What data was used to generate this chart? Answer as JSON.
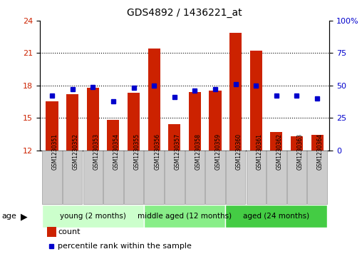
{
  "title": "GDS4892 / 1436221_at",
  "samples": [
    "GSM1230351",
    "GSM1230352",
    "GSM1230353",
    "GSM1230354",
    "GSM1230355",
    "GSM1230356",
    "GSM1230357",
    "GSM1230358",
    "GSM1230359",
    "GSM1230360",
    "GSM1230361",
    "GSM1230362",
    "GSM1230363",
    "GSM1230364"
  ],
  "counts": [
    16.5,
    17.2,
    17.8,
    14.8,
    17.3,
    21.4,
    14.4,
    17.4,
    17.5,
    22.9,
    21.2,
    13.7,
    13.3,
    13.4
  ],
  "percentiles": [
    42,
    47,
    49,
    38,
    48,
    50,
    41,
    46,
    47,
    51,
    50,
    42,
    42,
    40
  ],
  "bar_color": "#cc2200",
  "dot_color": "#0000cc",
  "ylim_left": [
    12,
    24
  ],
  "ylim_right": [
    0,
    100
  ],
  "yticks_left": [
    12,
    15,
    18,
    21,
    24
  ],
  "yticks_right": [
    0,
    25,
    50,
    75,
    100
  ],
  "groups": [
    {
      "label": "young (2 months)",
      "start": 0,
      "end": 5,
      "color": "#ccffcc"
    },
    {
      "label": "middle aged (12 months)",
      "start": 5,
      "end": 9,
      "color": "#88ee88"
    },
    {
      "label": "aged (24 months)",
      "start": 9,
      "end": 14,
      "color": "#44cc44"
    }
  ],
  "legend_count_label": "count",
  "legend_pct_label": "percentile rank within the sample",
  "age_label": "age",
  "tick_label_color_left": "#cc2200",
  "tick_label_color_right": "#0000cc",
  "xtick_bg_color": "#cccccc",
  "xtick_edge_color": "#999999"
}
